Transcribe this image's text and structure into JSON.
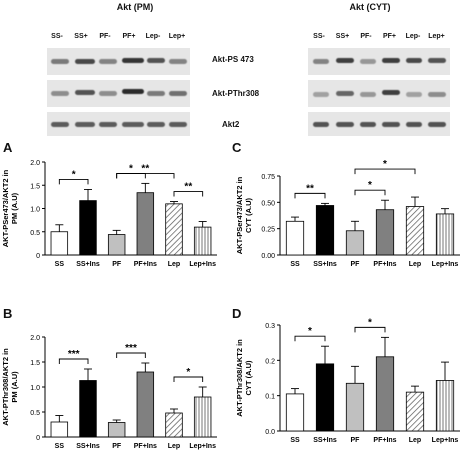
{
  "blots": {
    "left_title": "Akt (PM)",
    "right_title": "Akt (CYT)",
    "left_lanes": [
      "SS-",
      "SS+",
      "PF-",
      "PF+",
      "Lep-",
      "Lep+"
    ],
    "right_lanes": [
      "SS-",
      "SS+",
      "PF-",
      "PF+",
      "Lep-",
      "Lep+"
    ],
    "row_labels": [
      "Akt-PS 473",
      "Akt-PThr308",
      "Akt2"
    ]
  },
  "chart_data": [
    {
      "panel": "A",
      "type": "bar",
      "categories": [
        "SS",
        "SS+Ins",
        "PF",
        "PF+Ins",
        "Lep",
        "Lep+Ins"
      ],
      "values": [
        0.5,
        1.17,
        0.44,
        1.34,
        1.1,
        0.6
      ],
      "errors": [
        0.15,
        0.24,
        0.09,
        0.2,
        0.05,
        0.12
      ],
      "ylabel": "AKT-PSer473/AKT2 in PM (A.U)",
      "ylim": [
        0,
        2.0
      ],
      "yticks": [
        "0",
        "0.5",
        "1.0",
        "1.5",
        "2.0"
      ],
      "significance": [
        {
          "from": 0,
          "to": 1,
          "label": "*"
        },
        {
          "from": 2,
          "to": 3,
          "label": "*"
        },
        {
          "from": 2,
          "to": 4,
          "label": "**"
        },
        {
          "from": 4,
          "to": 5,
          "label": "**"
        }
      ]
    },
    {
      "panel": "C",
      "type": "bar",
      "categories": [
        "SS",
        "SS+Ins",
        "PF",
        "PF+Ins",
        "Lep",
        "Lep+Ins"
      ],
      "values": [
        0.32,
        0.47,
        0.23,
        0.43,
        0.46,
        0.39
      ],
      "errors": [
        0.04,
        0.02,
        0.09,
        0.09,
        0.09,
        0.05
      ],
      "ylabel": "AKT-PSer473/AKT2 in CYT (A.U)",
      "ylim": [
        0,
        0.75
      ],
      "yticks": [
        "0.00",
        "0.25",
        "0.50",
        "0.75"
      ],
      "significance": [
        {
          "from": 0,
          "to": 1,
          "label": "**"
        },
        {
          "from": 2,
          "to": 3,
          "label": "*"
        },
        {
          "from": 2,
          "to": 4,
          "label": "*"
        }
      ]
    },
    {
      "panel": "B",
      "type": "bar",
      "categories": [
        "SS",
        "SS+Ins",
        "PF",
        "PF+Ins",
        "Lep",
        "Lep+Ins"
      ],
      "values": [
        0.3,
        1.13,
        0.29,
        1.3,
        0.48,
        0.8
      ],
      "errors": [
        0.13,
        0.23,
        0.05,
        0.18,
        0.08,
        0.2
      ],
      "ylabel": "AKT-PThr308/AKT2 in PM (A.U)",
      "ylim": [
        0,
        2.0
      ],
      "yticks": [
        "0",
        "0.5",
        "1.0",
        "1.5",
        "2.0"
      ],
      "significance": [
        {
          "from": 0,
          "to": 1,
          "label": "***"
        },
        {
          "from": 2,
          "to": 3,
          "label": "***"
        },
        {
          "from": 4,
          "to": 5,
          "label": "*"
        }
      ]
    },
    {
      "panel": "D",
      "type": "bar",
      "categories": [
        "SS",
        "SS+Ins",
        "PF",
        "PF+Ins",
        "Lep",
        "Lep+Ins"
      ],
      "values": [
        0.105,
        0.19,
        0.135,
        0.21,
        0.11,
        0.143
      ],
      "errors": [
        0.015,
        0.05,
        0.048,
        0.055,
        0.017,
        0.052
      ],
      "ylabel": "AKT-PThr308/AKT2 in CYT (A.U)",
      "ylim": [
        0,
        0.3
      ],
      "yticks": [
        "0.0",
        "0.1",
        "0.2",
        "0.3"
      ],
      "significance": [
        {
          "from": 0,
          "to": 1,
          "label": "*"
        },
        {
          "from": 2,
          "to": 3,
          "label": "*"
        }
      ]
    }
  ],
  "bar_styles": [
    "#ffffff",
    "#000000",
    "#c0c0c0",
    "#808080",
    "hatch-diag",
    "hatch-vert"
  ]
}
